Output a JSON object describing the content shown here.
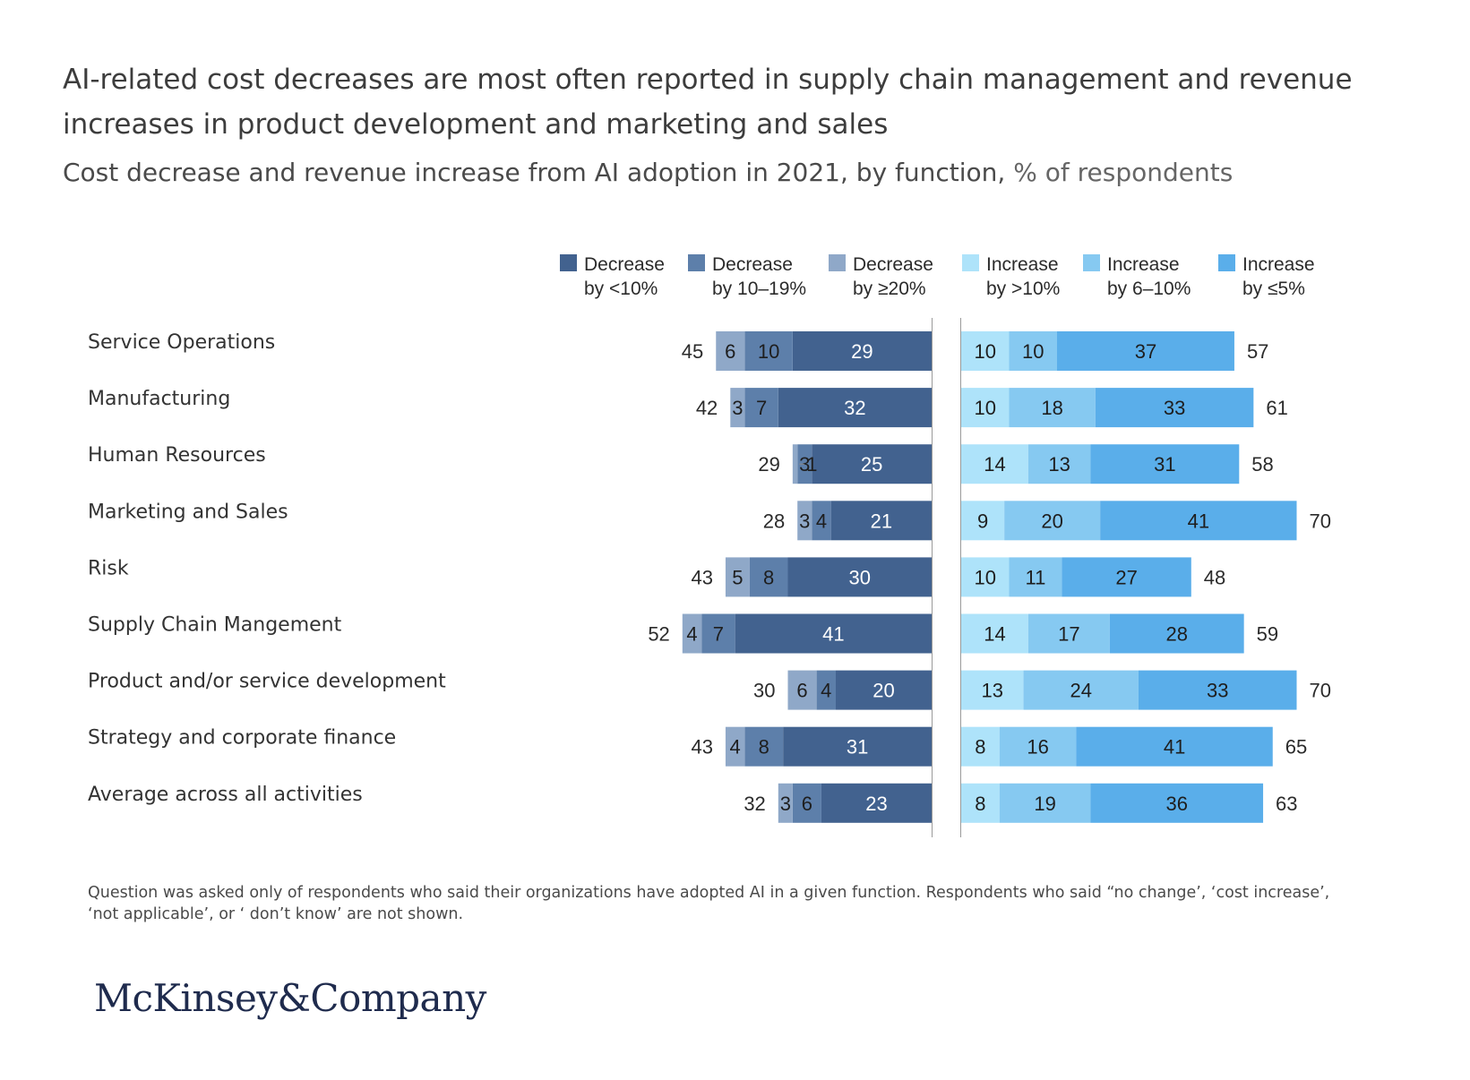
{
  "title": "AI-related cost decreases are most often reported in supply chain management and revenue increases in product development and marketing and sales",
  "subtitle": "Cost decrease and revenue increase from AI adoption in 2021, by function,",
  "subtitle_unit": "% of respondents",
  "footnote": "Question was asked only of respondents who said their organizations have adopted AI in a given function. Respondents who said “no change’, ‘cost increase’, ‘not applicable’, or ‘ don’t know’ are not shown.",
  "logo_text": "McKinsey&Company",
  "chart_data": {
    "type": "bar",
    "orientation": "horizontal-diverging-stacked",
    "categories": [
      "Service Operations",
      "Manufacturing",
      "Human Resources",
      "Marketing and Sales",
      "Risk",
      "Supply Chain Mangement",
      "Product and/or service development",
      "Strategy and corporate finance",
      "Average across all activities"
    ],
    "decrease_series": [
      {
        "name": [
          "Decrease",
          "by <10%"
        ],
        "color": "#42628f",
        "text_color": "#ffffff",
        "values": [
          29,
          32,
          25,
          21,
          30,
          41,
          20,
          31,
          23
        ]
      },
      {
        "name": [
          "Decrease",
          "by 10–19%"
        ],
        "color": "#5d7faa",
        "text_color": "#1e1e1e",
        "values": [
          10,
          7,
          3,
          4,
          8,
          7,
          4,
          8,
          6
        ]
      },
      {
        "name": [
          "Decrease",
          "by ≥20%"
        ],
        "color": "#8fa8c8",
        "text_color": "#1e1e1e",
        "values": [
          6,
          3,
          1,
          3,
          5,
          4,
          6,
          4,
          3
        ]
      }
    ],
    "increase_series": [
      {
        "name": [
          "Increase",
          "by >10%"
        ],
        "color": "#aee3fa",
        "text_color": "#1e1e1e",
        "values": [
          10,
          10,
          14,
          9,
          10,
          14,
          13,
          8,
          8
        ]
      },
      {
        "name": [
          "Increase",
          "by 6–10%"
        ],
        "color": "#86c9f1",
        "text_color": "#1e1e1e",
        "values": [
          10,
          18,
          13,
          20,
          11,
          17,
          24,
          16,
          19
        ]
      },
      {
        "name": [
          "Increase",
          "by ≤5%"
        ],
        "color": "#5aaeea",
        "text_color": "#1e1e1e",
        "values": [
          37,
          33,
          31,
          41,
          27,
          28,
          33,
          41,
          36
        ]
      }
    ],
    "decrease_totals": [
      45,
      42,
      29,
      28,
      43,
      52,
      30,
      43,
      32
    ],
    "increase_totals": [
      57,
      61,
      58,
      70,
      48,
      59,
      70,
      65,
      63
    ],
    "grid": false,
    "legend_position": "top"
  }
}
